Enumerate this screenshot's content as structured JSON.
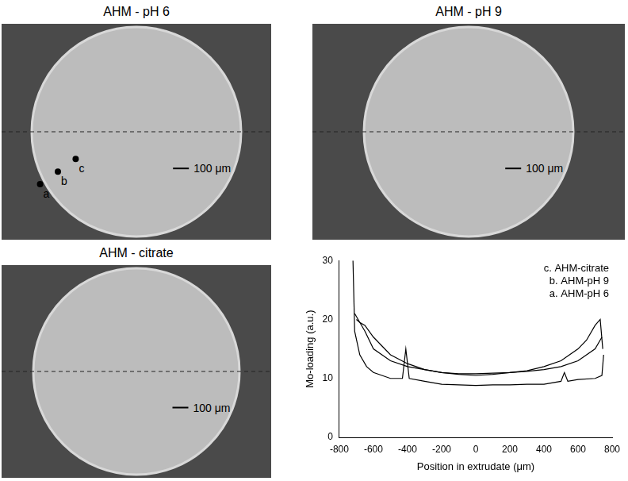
{
  "images": [
    {
      "title": "AHM - pH 6",
      "scale_bar": "100 μm",
      "points": [
        "a",
        "b",
        "c"
      ]
    },
    {
      "title": "AHM - pH 9",
      "scale_bar": "100 μm"
    },
    {
      "title": "AHM - citrate",
      "scale_bar": "100 μm"
    }
  ],
  "chart_data": {
    "type": "line",
    "x_label": "Position in extrudate (μm)",
    "y_label": "Mo-loading (a.u.)",
    "xlim": [
      -800,
      800
    ],
    "xticks": [
      -800,
      -600,
      -400,
      -200,
      0,
      200,
      400,
      600,
      800
    ],
    "ylim": [
      0,
      30
    ],
    "yticks": [
      0,
      10,
      20,
      30
    ],
    "grid": false,
    "legend": "upper right",
    "series": [
      {
        "name": "c. AHM-citrate",
        "color": "#000000",
        "x": [
          -700,
          -680,
          -650,
          -600,
          -500,
          -400,
          -300,
          -200,
          -100,
          0,
          100,
          200,
          300,
          400,
          500,
          600,
          650,
          700,
          730,
          745
        ],
        "values": [
          20,
          19.5,
          19,
          17,
          14,
          12.5,
          11.5,
          11,
          10.8,
          10.8,
          10.9,
          11,
          11.3,
          12,
          13,
          15,
          16.5,
          19,
          20,
          15
        ]
      },
      {
        "name": "b. AHM-pH 9",
        "color": "#000000",
        "x": [
          -710,
          -690,
          -650,
          -600,
          -500,
          -400,
          -300,
          -200,
          -100,
          0,
          100,
          200,
          300,
          400,
          500,
          600,
          650,
          700,
          740
        ],
        "values": [
          21,
          20,
          18,
          15,
          13,
          12,
          11.5,
          11,
          10.7,
          10.5,
          10.7,
          11,
          11.2,
          11.5,
          12,
          13,
          14,
          15,
          17
        ]
      },
      {
        "name": "a. AHM-pH 6",
        "color": "#000000",
        "x": [
          -720,
          -710,
          -680,
          -640,
          -600,
          -500,
          -430,
          -410,
          -390,
          -300,
          -200,
          -100,
          0,
          100,
          200,
          300,
          400,
          500,
          520,
          540,
          600,
          700,
          740,
          750
        ],
        "values": [
          30,
          18,
          14,
          12,
          11,
          10,
          10,
          15,
          10,
          9.5,
          9,
          8.9,
          8.8,
          8.9,
          8.9,
          9,
          9,
          9.5,
          11,
          9.5,
          9.8,
          10,
          10.5,
          14
        ]
      }
    ]
  }
}
